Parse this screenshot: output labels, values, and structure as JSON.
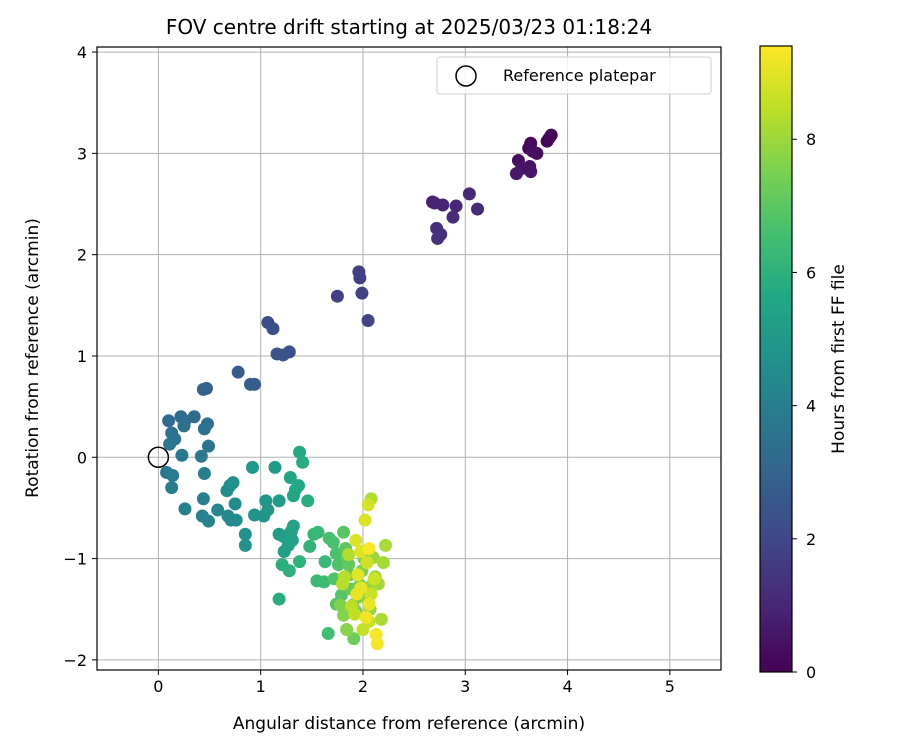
{
  "chart_data": {
    "type": "scatter",
    "title": "FOV centre drift starting at 2025/03/23 01:18:24",
    "xlabel": "Angular distance from reference (arcmin)",
    "ylabel": "Rotation from reference (arcmin)",
    "xlim": [
      -0.6,
      5.5
    ],
    "ylim": [
      -2.1,
      4.05
    ],
    "xticks": [
      0,
      1,
      2,
      3,
      4,
      5
    ],
    "yticks": [
      -2,
      -1,
      0,
      1,
      2,
      3,
      4
    ],
    "grid": true,
    "legend": {
      "placement": "top-right",
      "entries": [
        "Reference platepar"
      ]
    },
    "reference_point": {
      "name": "Reference platepar",
      "x": 0,
      "y": 0,
      "marker": "open-circle"
    },
    "colorbar": {
      "label": "Hours from first FF file",
      "colormap": "viridis",
      "min": 0,
      "max": 9.4,
      "ticks": [
        0,
        2,
        4,
        6,
        8
      ]
    },
    "points": [
      {
        "x": 3.84,
        "y": 3.18,
        "h": 0.05
      },
      {
        "x": 3.8,
        "y": 3.12,
        "h": 0.1
      },
      {
        "x": 3.82,
        "y": 3.15,
        "h": 0.15
      },
      {
        "x": 3.64,
        "y": 3.1,
        "h": 0.2
      },
      {
        "x": 3.62,
        "y": 3.05,
        "h": 0.25
      },
      {
        "x": 3.7,
        "y": 3.0,
        "h": 0.3
      },
      {
        "x": 3.66,
        "y": 3.02,
        "h": 0.35
      },
      {
        "x": 3.52,
        "y": 2.93,
        "h": 0.4
      },
      {
        "x": 3.63,
        "y": 2.87,
        "h": 0.45
      },
      {
        "x": 3.55,
        "y": 2.85,
        "h": 0.5
      },
      {
        "x": 3.64,
        "y": 2.82,
        "h": 0.55
      },
      {
        "x": 3.5,
        "y": 2.8,
        "h": 0.6
      },
      {
        "x": 2.68,
        "y": 2.52,
        "h": 0.9
      },
      {
        "x": 2.7,
        "y": 2.51,
        "h": 0.95
      },
      {
        "x": 2.78,
        "y": 2.49,
        "h": 1.0
      },
      {
        "x": 2.91,
        "y": 2.48,
        "h": 1.05
      },
      {
        "x": 3.04,
        "y": 2.6,
        "h": 1.1
      },
      {
        "x": 3.12,
        "y": 2.45,
        "h": 1.15
      },
      {
        "x": 2.88,
        "y": 2.37,
        "h": 1.2
      },
      {
        "x": 2.72,
        "y": 2.26,
        "h": 1.25
      },
      {
        "x": 2.76,
        "y": 2.2,
        "h": 1.3
      },
      {
        "x": 2.73,
        "y": 2.16,
        "h": 1.35
      },
      {
        "x": 1.96,
        "y": 1.83,
        "h": 1.7
      },
      {
        "x": 1.97,
        "y": 1.77,
        "h": 1.75
      },
      {
        "x": 1.75,
        "y": 1.59,
        "h": 1.8
      },
      {
        "x": 1.99,
        "y": 1.62,
        "h": 1.85
      },
      {
        "x": 2.05,
        "y": 1.35,
        "h": 1.9
      },
      {
        "x": 1.07,
        "y": 1.33,
        "h": 2.2
      },
      {
        "x": 1.12,
        "y": 1.27,
        "h": 2.25
      },
      {
        "x": 1.28,
        "y": 1.04,
        "h": 2.3
      },
      {
        "x": 1.16,
        "y": 1.02,
        "h": 2.35
      },
      {
        "x": 1.22,
        "y": 1.01,
        "h": 2.4
      },
      {
        "x": 0.78,
        "y": 0.84,
        "h": 2.7
      },
      {
        "x": 0.9,
        "y": 0.72,
        "h": 2.75
      },
      {
        "x": 0.94,
        "y": 0.72,
        "h": 2.8
      },
      {
        "x": 0.44,
        "y": 0.67,
        "h": 2.9
      },
      {
        "x": 0.47,
        "y": 0.68,
        "h": 2.95
      },
      {
        "x": 0.22,
        "y": 0.4,
        "h": 3.2
      },
      {
        "x": 0.35,
        "y": 0.4,
        "h": 3.25
      },
      {
        "x": 0.1,
        "y": 0.36,
        "h": 3.3
      },
      {
        "x": 0.26,
        "y": 0.36,
        "h": 3.35
      },
      {
        "x": 0.48,
        "y": 0.33,
        "h": 3.4
      },
      {
        "x": 0.25,
        "y": 0.31,
        "h": 3.45
      },
      {
        "x": 0.45,
        "y": 0.28,
        "h": 3.5
      },
      {
        "x": 0.13,
        "y": 0.24,
        "h": 3.55
      },
      {
        "x": 0.16,
        "y": 0.18,
        "h": 3.6
      },
      {
        "x": 0.11,
        "y": 0.13,
        "h": 3.65
      },
      {
        "x": 0.49,
        "y": 0.11,
        "h": 3.7
      },
      {
        "x": 0.23,
        "y": 0.02,
        "h": 3.75
      },
      {
        "x": 0.42,
        "y": 0.01,
        "h": 3.8
      },
      {
        "x": 0.08,
        "y": -0.15,
        "h": 3.85
      },
      {
        "x": 0.14,
        "y": -0.18,
        "h": 3.9
      },
      {
        "x": 0.45,
        "y": -0.16,
        "h": 3.95
      },
      {
        "x": 0.13,
        "y": -0.3,
        "h": 4.0
      },
      {
        "x": 0.44,
        "y": -0.41,
        "h": 4.05
      },
      {
        "x": 0.26,
        "y": -0.51,
        "h": 4.1
      },
      {
        "x": 0.43,
        "y": -0.58,
        "h": 4.15
      },
      {
        "x": 0.49,
        "y": -0.63,
        "h": 4.2
      },
      {
        "x": 0.58,
        "y": -0.52,
        "h": 4.3
      },
      {
        "x": 0.68,
        "y": -0.58,
        "h": 4.35
      },
      {
        "x": 0.71,
        "y": -0.62,
        "h": 4.4
      },
      {
        "x": 0.76,
        "y": -0.62,
        "h": 4.45
      },
      {
        "x": 0.75,
        "y": -0.46,
        "h": 4.5
      },
      {
        "x": 0.67,
        "y": -0.33,
        "h": 4.55
      },
      {
        "x": 0.7,
        "y": -0.28,
        "h": 4.6
      },
      {
        "x": 0.73,
        "y": -0.25,
        "h": 4.65
      },
      {
        "x": 0.85,
        "y": -0.76,
        "h": 4.7
      },
      {
        "x": 0.85,
        "y": -0.87,
        "h": 4.75
      },
      {
        "x": 0.94,
        "y": -0.57,
        "h": 4.8
      },
      {
        "x": 1.03,
        "y": -0.58,
        "h": 4.85
      },
      {
        "x": 1.05,
        "y": -0.43,
        "h": 4.9
      },
      {
        "x": 1.07,
        "y": -0.52,
        "h": 4.95
      },
      {
        "x": 0.92,
        "y": -0.1,
        "h": 5.0
      },
      {
        "x": 1.14,
        "y": -0.1,
        "h": 5.05
      },
      {
        "x": 1.18,
        "y": -0.43,
        "h": 5.1
      },
      {
        "x": 1.18,
        "y": -0.76,
        "h": 5.15
      },
      {
        "x": 1.22,
        "y": -0.78,
        "h": 5.2
      },
      {
        "x": 1.23,
        "y": -0.93,
        "h": 5.25
      },
      {
        "x": 1.27,
        "y": -0.87,
        "h": 5.3
      },
      {
        "x": 1.3,
        "y": -0.73,
        "h": 5.35
      },
      {
        "x": 1.32,
        "y": -0.68,
        "h": 5.4
      },
      {
        "x": 1.31,
        "y": -0.82,
        "h": 5.45
      },
      {
        "x": 1.29,
        "y": -0.2,
        "h": 5.5
      },
      {
        "x": 1.32,
        "y": -0.38,
        "h": 5.55
      },
      {
        "x": 1.34,
        "y": -0.32,
        "h": 5.6
      },
      {
        "x": 1.37,
        "y": -0.28,
        "h": 5.65
      },
      {
        "x": 1.38,
        "y": 0.05,
        "h": 5.7
      },
      {
        "x": 1.41,
        "y": -0.05,
        "h": 5.75
      },
      {
        "x": 1.46,
        "y": -0.43,
        "h": 5.8
      },
      {
        "x": 1.18,
        "y": -1.4,
        "h": 5.85
      },
      {
        "x": 1.21,
        "y": -1.06,
        "h": 5.9
      },
      {
        "x": 1.28,
        "y": -1.12,
        "h": 5.95
      },
      {
        "x": 1.38,
        "y": -1.03,
        "h": 6.0
      },
      {
        "x": 1.48,
        "y": -0.88,
        "h": 6.1
      },
      {
        "x": 1.52,
        "y": -0.76,
        "h": 6.2
      },
      {
        "x": 1.56,
        "y": -0.74,
        "h": 6.25
      },
      {
        "x": 1.63,
        "y": -1.03,
        "h": 6.3
      },
      {
        "x": 1.55,
        "y": -1.22,
        "h": 6.35
      },
      {
        "x": 1.62,
        "y": -1.23,
        "h": 6.4
      },
      {
        "x": 1.66,
        "y": -1.74,
        "h": 6.5
      },
      {
        "x": 1.67,
        "y": -0.8,
        "h": 6.6
      },
      {
        "x": 1.71,
        "y": -0.84,
        "h": 6.65
      },
      {
        "x": 1.74,
        "y": -0.95,
        "h": 6.7
      },
      {
        "x": 1.76,
        "y": -1.06,
        "h": 6.75
      },
      {
        "x": 1.72,
        "y": -1.2,
        "h": 6.8
      },
      {
        "x": 1.74,
        "y": -1.45,
        "h": 6.85
      },
      {
        "x": 1.79,
        "y": -1.36,
        "h": 6.9
      },
      {
        "x": 1.81,
        "y": -0.74,
        "h": 6.95
      },
      {
        "x": 1.83,
        "y": -0.9,
        "h": 7.0
      },
      {
        "x": 1.84,
        "y": -0.99,
        "h": 7.05
      },
      {
        "x": 1.86,
        "y": -1.06,
        "h": 7.1
      },
      {
        "x": 1.87,
        "y": -1.16,
        "h": 7.15
      },
      {
        "x": 1.88,
        "y": -1.3,
        "h": 7.2
      },
      {
        "x": 1.9,
        "y": -1.46,
        "h": 7.25
      },
      {
        "x": 1.91,
        "y": -1.79,
        "h": 7.3
      },
      {
        "x": 1.93,
        "y": -1.52,
        "h": 7.35
      },
      {
        "x": 1.95,
        "y": -1.38,
        "h": 7.4
      },
      {
        "x": 1.97,
        "y": -1.26,
        "h": 7.45
      },
      {
        "x": 1.99,
        "y": -1.12,
        "h": 7.5
      },
      {
        "x": 2.01,
        "y": -1.0,
        "h": 7.55
      },
      {
        "x": 1.78,
        "y": -1.46,
        "h": 7.6
      },
      {
        "x": 1.81,
        "y": -1.56,
        "h": 7.65
      },
      {
        "x": 1.84,
        "y": -1.7,
        "h": 7.7
      },
      {
        "x": 2.03,
        "y": -1.3,
        "h": 7.75
      },
      {
        "x": 2.05,
        "y": -1.42,
        "h": 7.8
      },
      {
        "x": 2.07,
        "y": -1.5,
        "h": 7.85
      },
      {
        "x": 2.09,
        "y": -1.26,
        "h": 7.9
      },
      {
        "x": 2.1,
        "y": -0.99,
        "h": 7.95
      },
      {
        "x": 2.12,
        "y": -1.18,
        "h": 8.0
      },
      {
        "x": 2.15,
        "y": -1.25,
        "h": 8.05
      },
      {
        "x": 2.2,
        "y": -1.04,
        "h": 8.1
      },
      {
        "x": 2.22,
        "y": -0.87,
        "h": 8.15
      },
      {
        "x": 2.18,
        "y": -1.6,
        "h": 8.2
      },
      {
        "x": 2.08,
        "y": -0.41,
        "h": 8.25
      },
      {
        "x": 1.86,
        "y": -0.96,
        "h": 8.3
      },
      {
        "x": 1.82,
        "y": -1.18,
        "h": 8.35
      },
      {
        "x": 1.8,
        "y": -1.25,
        "h": 8.4
      },
      {
        "x": 1.89,
        "y": -1.47,
        "h": 8.45
      },
      {
        "x": 1.92,
        "y": -1.55,
        "h": 8.5
      },
      {
        "x": 2.0,
        "y": -1.7,
        "h": 8.55
      },
      {
        "x": 2.06,
        "y": -1.62,
        "h": 8.6
      },
      {
        "x": 2.08,
        "y": -1.35,
        "h": 8.65
      },
      {
        "x": 2.11,
        "y": -1.2,
        "h": 8.7
      },
      {
        "x": 2.04,
        "y": -1.04,
        "h": 8.75
      },
      {
        "x": 2.05,
        "y": -0.47,
        "h": 8.8
      },
      {
        "x": 2.02,
        "y": -0.62,
        "h": 8.85
      },
      {
        "x": 1.93,
        "y": -0.82,
        "h": 8.9
      },
      {
        "x": 1.98,
        "y": -0.93,
        "h": 8.95
      },
      {
        "x": 1.95,
        "y": -1.16,
        "h": 9.0
      },
      {
        "x": 1.98,
        "y": -1.29,
        "h": 9.05
      },
      {
        "x": 1.94,
        "y": -1.35,
        "h": 9.1
      },
      {
        "x": 2.06,
        "y": -1.45,
        "h": 9.15
      },
      {
        "x": 2.03,
        "y": -1.58,
        "h": 9.2
      },
      {
        "x": 2.13,
        "y": -1.75,
        "h": 9.25
      },
      {
        "x": 2.14,
        "y": -1.84,
        "h": 9.3
      },
      {
        "x": 2.06,
        "y": -0.9,
        "h": 9.35
      }
    ]
  }
}
